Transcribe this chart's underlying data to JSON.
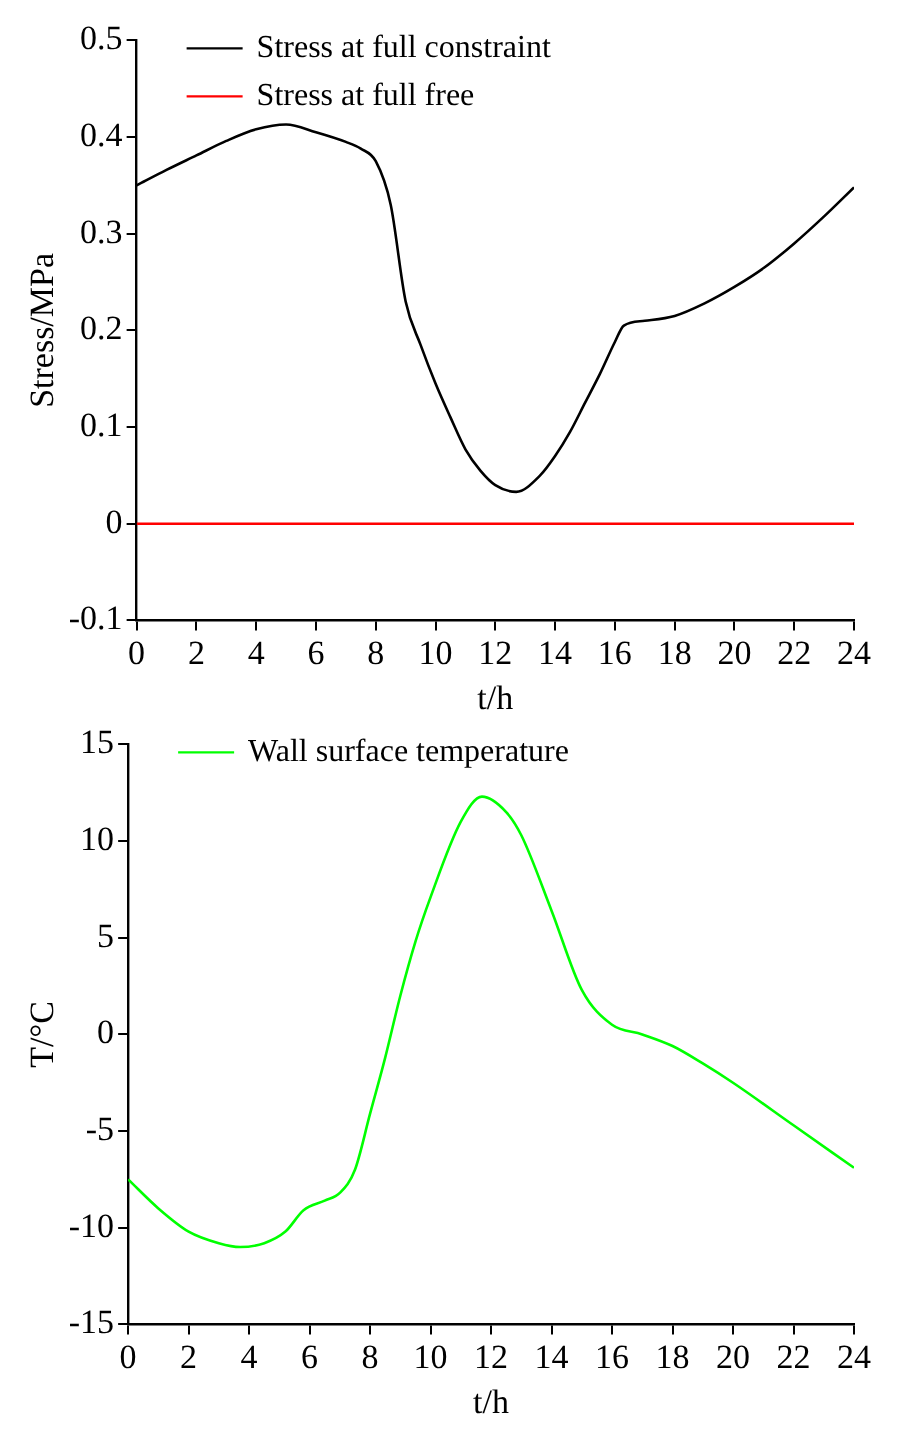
{
  "chart_data": [
    {
      "type": "line",
      "xlabel": "t/h",
      "ylabel": "Stress/MPa",
      "xlim": [
        0,
        24
      ],
      "xticks": [
        0,
        2,
        4,
        6,
        8,
        10,
        12,
        14,
        16,
        18,
        20,
        22,
        24
      ],
      "ylim": [
        -0.1,
        0.5
      ],
      "yticks": [
        -0.1,
        0,
        0.1,
        0.2,
        0.3,
        0.4,
        0.5
      ],
      "legend": "top left",
      "marker": "none",
      "series": [
        {
          "name": "Stress at full constraint",
          "color": "#000000",
          "x": [
            0,
            1,
            2,
            3,
            4,
            5,
            6,
            7,
            7.5,
            8,
            8.5,
            9,
            9.5,
            10,
            10.5,
            11,
            11.5,
            12,
            12.7,
            13.5,
            14,
            14.5,
            15,
            15.5,
            16,
            16.3,
            17,
            18,
            19,
            20,
            21,
            22,
            23,
            24
          ],
          "values": [
            0.35,
            0.366,
            0.381,
            0.396,
            0.408,
            0.413,
            0.405,
            0.395,
            0.388,
            0.375,
            0.33,
            0.23,
            0.185,
            0.145,
            0.11,
            0.077,
            0.055,
            0.04,
            0.033,
            0.05,
            0.07,
            0.095,
            0.125,
            0.155,
            0.188,
            0.205,
            0.21,
            0.215,
            0.228,
            0.245,
            0.265,
            0.29,
            0.318,
            0.348
          ]
        },
        {
          "name": "Stress at full free",
          "color": "#ff0000",
          "x": [
            0,
            24
          ],
          "values": [
            0,
            0
          ]
        }
      ]
    },
    {
      "type": "line",
      "xlabel": "t/h",
      "ylabel": "T/°C",
      "xlim": [
        0,
        24
      ],
      "xticks": [
        0,
        2,
        4,
        6,
        8,
        10,
        12,
        14,
        16,
        18,
        20,
        22,
        24
      ],
      "ylim": [
        -15,
        15
      ],
      "yticks": [
        -15,
        -10,
        -5,
        0,
        5,
        10,
        15
      ],
      "legend": "top left",
      "marker": "none",
      "series": [
        {
          "name": "Wall surface temperature",
          "color": "#00ff00",
          "x": [
            0,
            1,
            2,
            3,
            3.7,
            4.5,
            5.2,
            5.8,
            6.5,
            7,
            7.5,
            8,
            8.5,
            9,
            9.5,
            10,
            11,
            11.7,
            12.5,
            13,
            14,
            15,
            16,
            17,
            18,
            19,
            20,
            22,
            24
          ],
          "values": [
            -7.5,
            -9,
            -10.2,
            -10.8,
            -11,
            -10.8,
            -10.2,
            -9.1,
            -8.6,
            -8.2,
            -7,
            -4.1,
            -1.2,
            2,
            4.8,
            7.1,
            11,
            12.3,
            11.5,
            10.3,
            6.4,
            2.3,
            0.5,
            0,
            -0.6,
            -1.5,
            -2.5,
            -4.7,
            -6.9
          ]
        }
      ]
    }
  ]
}
